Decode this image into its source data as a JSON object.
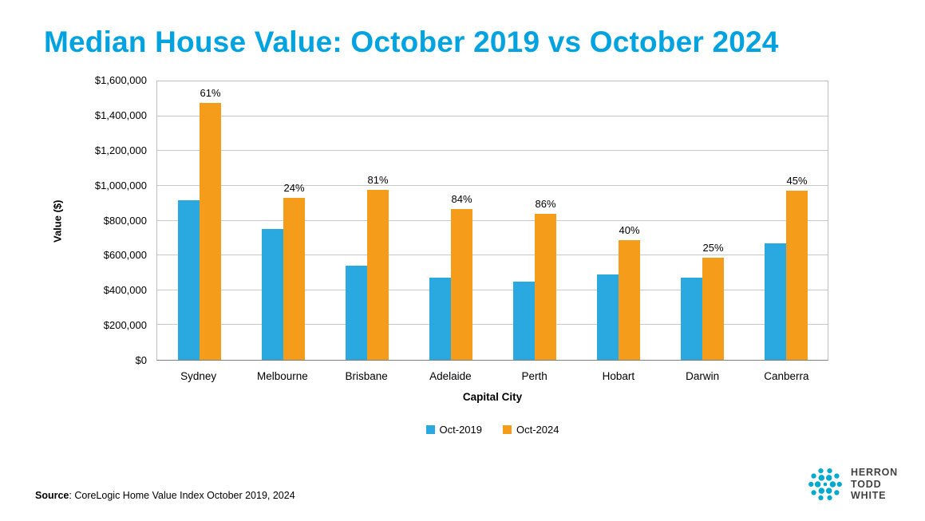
{
  "title": "Median House Value: October 2019 vs October 2024",
  "chart_data": {
    "type": "bar",
    "categories": [
      "Sydney",
      "Melbourne",
      "Brisbane",
      "Adelaide",
      "Perth",
      "Hobart",
      "Darwin",
      "Canberra"
    ],
    "series": [
      {
        "name": "Oct-2019",
        "color": "#29A9E0",
        "values": [
          915000,
          750000,
          540000,
          470000,
          450000,
          490000,
          470000,
          670000
        ]
      },
      {
        "name": "Oct-2024",
        "color": "#F59C1A",
        "values": [
          1475000,
          930000,
          977000,
          865000,
          838000,
          686000,
          588000,
          972000
        ]
      }
    ],
    "bar_labels": [
      "61%",
      "24%",
      "81%",
      "84%",
      "86%",
      "40%",
      "25%",
      "45%"
    ],
    "xlabel": "Capital City",
    "ylabel": "Value ($)",
    "ylim": [
      0,
      1600000
    ],
    "ytick_step": 200000,
    "ytick_format": "$#,##0",
    "grid": true,
    "legend_position": "bottom"
  },
  "source": {
    "label": "Source",
    "rest": ": CoreLogic Home Value Index October 2019, 2024"
  },
  "logo": {
    "line1": "HERRON",
    "line2": "TODD",
    "line3": "WHITE",
    "mark_color": "#00A9CE",
    "text_color": "#414042"
  },
  "colors": {
    "title": "#00A3E0",
    "series_2019": "#29A9E0",
    "series_2024": "#F59C1A",
    "background": "#FFFFFF"
  }
}
